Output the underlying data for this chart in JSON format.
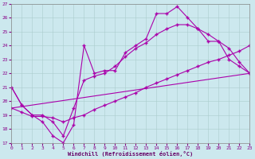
{
  "xlabel": "Windchill (Refroidissement éolien,°C)",
  "bg": "#cce8ee",
  "grid_color": "#aacccc",
  "line_color": "#aa00aa",
  "xlim": [
    0,
    23
  ],
  "ylim": [
    17,
    27
  ],
  "yticks": [
    17,
    18,
    19,
    20,
    21,
    22,
    23,
    24,
    25,
    26,
    27
  ],
  "xticks": [
    0,
    1,
    2,
    3,
    4,
    5,
    6,
    7,
    8,
    9,
    10,
    11,
    12,
    13,
    14,
    15,
    16,
    17,
    18,
    19,
    20,
    21,
    22,
    23
  ],
  "line1_x": [
    0,
    1,
    2,
    3,
    4,
    5,
    6,
    7,
    8,
    9,
    10,
    11,
    12,
    13,
    14,
    15,
    16,
    17,
    18,
    19,
    20,
    21,
    22,
    23
  ],
  "line1_y": [
    21.0,
    19.7,
    19.0,
    18.5,
    17.5,
    17.0,
    18.3,
    24.0,
    22.0,
    22.2,
    22.2,
    23.5,
    24.0,
    24.5,
    26.3,
    26.3,
    26.8,
    26.0,
    25.2,
    24.3,
    24.3,
    23.0,
    22.5,
    22.0
  ],
  "line2_x": [
    0,
    1,
    2,
    3,
    4,
    5,
    6,
    7,
    8,
    9,
    10,
    11,
    12,
    13,
    14,
    15,
    16,
    17,
    18,
    19,
    20,
    21,
    22,
    23
  ],
  "line2_y": [
    21.0,
    19.7,
    19.0,
    19.0,
    18.5,
    17.5,
    19.5,
    21.5,
    21.8,
    22.0,
    22.5,
    23.2,
    23.8,
    24.2,
    24.8,
    25.2,
    25.5,
    25.5,
    25.2,
    24.8,
    24.3,
    23.8,
    22.8,
    22.0
  ],
  "line3_x": [
    0,
    23
  ],
  "line3_y": [
    19.5,
    22.0
  ],
  "line4_x": [
    0,
    1,
    2,
    3,
    4,
    5,
    6,
    7,
    8,
    9,
    10,
    11,
    12,
    13,
    14,
    15,
    16,
    17,
    18,
    19,
    20,
    21,
    22,
    23
  ],
  "line4_y": [
    19.5,
    19.2,
    18.9,
    18.9,
    18.8,
    18.5,
    18.8,
    19.0,
    19.4,
    19.7,
    20.0,
    20.3,
    20.6,
    21.0,
    21.3,
    21.6,
    21.9,
    22.2,
    22.5,
    22.8,
    23.0,
    23.3,
    23.6,
    24.0
  ]
}
